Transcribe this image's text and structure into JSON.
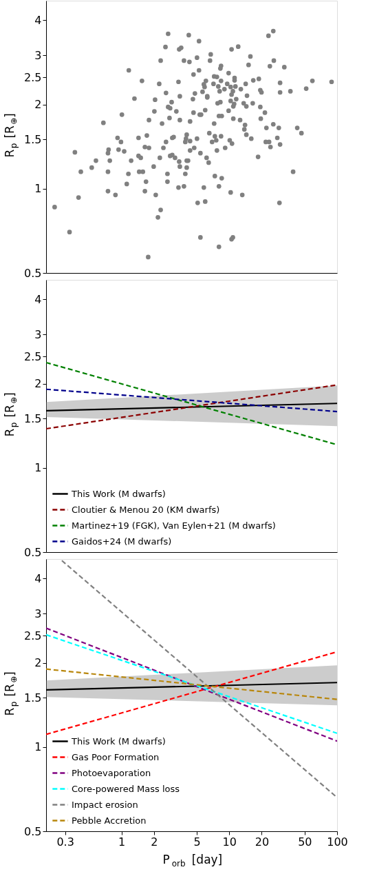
{
  "chart_data": [
    {
      "type": "scatter",
      "ylabel": "R$_{p}$ [R$_{⊕}$]",
      "log": "xy",
      "xlim": [
        0.2,
        100
      ],
      "ylim": [
        0.5,
        4.7
      ],
      "xticks": [
        0.3,
        1,
        2,
        5,
        10,
        20,
        50,
        100
      ],
      "yticks": [
        0.5,
        1,
        1.5,
        2,
        2.5,
        3,
        4
      ],
      "tick_labels": "y",
      "marker": "circle",
      "series": [
        {
          "color": "#808080",
          "x": [
            0.24,
            0.33,
            0.37,
            0.42,
            0.4,
            0.53,
            0.58,
            0.68,
            0.76,
            0.75,
            0.78,
            0.75,
            0.75,
            0.88,
            0.92,
            0.99,
            0.94,
            1.06,
            1.01,
            1.17,
            1.32,
            1.23,
            1.16,
            1.12,
            1.44,
            1.44,
            1.51,
            1.55,
            1.65,
            1.8,
            1.72,
            1.8,
            2.02,
            2.05,
            2.24,
            2.31,
            2.56,
            2.71,
            2.59,
            2.71,
            2.92,
            2.83,
            2.79,
            2.38,
            2.45,
            2.59,
            2.27,
            1.99,
            1.58,
            1.46,
            1.69,
            1.65,
            2.08,
            2.31,
            2.18,
            1.77,
            2.67,
            2.67,
            2.83,
            2.96,
            3.14,
            3.43,
            3.48,
            3.38,
            2.96,
            3.05,
            3.23,
            3.48,
            3.48,
            3.38,
            3.43,
            3.58,
            3.8,
            4.21,
            5.24,
            4.27,
            5.02,
            6.73,
            6.63,
            10.5,
            12.1,
            23.1,
            25.6,
            15.7,
            15.1,
            25.9,
            23.8,
            32.4,
            8.39,
            8.27,
            9.86,
            5.24,
            4.66,
            7.24,
            7.68,
            8.39,
            6.07,
            5.81,
            5.9,
            7.14,
            7.91,
            9.02,
            9.57,
            10.3,
            11.2,
            11.2,
            11.4,
            10.8,
            12.8,
            14.2,
            16.7,
            18.8,
            8.14,
            5.65,
            4.8,
            6.25,
            6.25,
            10.5,
            14.6,
            10.3,
            11.6,
            10.9,
            11.1,
            13.6,
            14.4,
            16.5,
            19.4,
            19.9,
            29.6,
            29.6,
            36.9,
            51.7,
            59.0,
            88.9,
            7.79,
            8.27,
            9.86,
            8.02,
            8.51,
            5.98,
            4.66,
            5.32,
            5.48,
            4.33,
            7.24,
            10.9,
            12.6,
            14.0,
            13.8,
            14.4,
            16.0,
            19.4,
            21.4,
            19.6,
            22.1,
            25.6,
            28.8,
            27.9,
            29.6,
            23.4,
            21.8,
            24.1,
            42.7,
            46.7,
            18.5,
            39.1,
            29.2,
            6.53,
            7.35,
            8.39,
            7.57,
            6.93,
            10.1,
            10.6,
            9.16,
            7.68,
            5.02,
            4.33,
            4.03,
            3.97,
            3.91,
            4.73,
            4.33,
            5.4,
            6.16,
            6.44,
            4.03,
            4.15,
            4.03,
            3.91,
            7.35,
            8.51,
            8.02,
            5.81,
            3.8,
            10.3,
            13.2,
            5.98,
            5.09,
            5.4,
            8.02,
            10.5,
            10.8,
            4.6
          ],
          "values": [
            0.86,
            0.7,
            1.35,
            1.15,
            0.93,
            1.19,
            1.26,
            1.72,
            1.38,
            1.34,
            1.26,
            1.15,
            0.98,
            0.95,
            1.52,
            1.47,
            1.38,
            1.36,
            1.84,
            2.65,
            2.1,
            1.26,
            1.13,
            1.04,
            1.52,
            1.31,
            1.29,
            2.43,
            1.41,
            1.4,
            1.55,
            1.76,
            1.89,
            2.08,
            2.37,
            2.87,
            3.21,
            3.58,
            2.2,
            1.96,
            2.04,
            1.94,
            1.79,
            1.71,
            1.4,
            1.47,
            1.29,
            1.2,
            1.15,
            1.15,
            1.06,
            0.98,
            0.95,
            0.84,
            0.79,
            0.57,
            1.13,
            1.06,
            1.31,
            1.32,
            1.29,
            1.25,
            1.2,
            1.01,
            1.52,
            1.53,
            1.89,
            1.76,
            2.14,
            2.41,
            3.15,
            3.19,
            2.87,
            3.54,
            3.37,
            2.84,
            2.94,
            3.02,
            2.87,
            3.15,
            3.22,
            3.52,
            3.66,
            2.97,
            2.77,
            2.87,
            2.74,
            2.72,
            2.75,
            2.69,
            2.59,
            2.65,
            2.56,
            2.52,
            2.51,
            2.43,
            2.43,
            2.36,
            2.31,
            2.37,
            2.32,
            2.27,
            2.37,
            2.31,
            2.49,
            2.44,
            2.32,
            2.23,
            2.27,
            2.37,
            2.44,
            2.47,
            2.23,
            2.22,
            2.19,
            2.14,
            2.12,
            2.17,
            2.15,
            2.06,
            2.09,
            1.97,
            2.01,
            2.02,
            1.97,
            2.02,
            2.25,
            2.21,
            2.39,
            2.21,
            2.23,
            2.28,
            2.43,
            2.41,
            2.02,
            2.04,
            1.9,
            1.82,
            1.82,
            1.91,
            1.87,
            1.84,
            1.84,
            1.74,
            1.71,
            1.78,
            1.76,
            1.69,
            1.63,
            1.56,
            1.51,
            1.96,
            1.87,
            1.78,
            1.65,
            1.7,
            1.65,
            1.52,
            1.44,
            1.47,
            1.47,
            1.41,
            1.65,
            1.58,
            1.3,
            1.15,
            0.89,
            1.58,
            1.54,
            1.54,
            1.49,
            1.47,
            1.49,
            1.45,
            1.4,
            1.37,
            1.51,
            1.48,
            1.56,
            1.51,
            1.47,
            1.4,
            1.37,
            1.34,
            1.29,
            1.24,
            1.26,
            1.26,
            1.19,
            1.13,
            1.11,
            1.09,
            1.02,
            1.01,
            1.02,
            0.97,
            0.95,
            0.9,
            0.89,
            0.67,
            0.62,
            0.66,
            0.67,
            2.09
          ]
        }
      ]
    },
    {
      "type": "line",
      "ylabel": "R$_{p}$ [R$_{⊕}$]",
      "log": "xy",
      "xlim": [
        0.2,
        100
      ],
      "ylim": [
        0.5,
        4.7
      ],
      "xticks": [
        0.3,
        1,
        2,
        5,
        10,
        20,
        50,
        100
      ],
      "yticks": [
        0.5,
        1,
        1.5,
        2,
        2.5,
        3,
        4
      ],
      "tick_labels": "y",
      "legend": "bottom left",
      "series": [
        {
          "name": "This Work (M dwarfs)",
          "color": "#000000",
          "line_style": "solid",
          "x": [
            0.2,
            100
          ],
          "values": [
            1.6,
            1.7
          ],
          "lower": [
            1.52,
            1.41
          ],
          "upper": [
            1.72,
            1.97
          ]
        },
        {
          "name": "Cloutier & Menou 20 (KM dwarfs)",
          "color": "#8b0000",
          "line_style": "dashed",
          "x": [
            0.2,
            100
          ],
          "values": [
            1.38,
            1.98
          ]
        },
        {
          "name": "Martinez+19 (FGK), Van Eylen+21 (M dwarfs)",
          "color": "#008000",
          "line_style": "dashed",
          "x": [
            0.2,
            100
          ],
          "values": [
            2.38,
            1.21
          ]
        },
        {
          "name": "Gaidos+24 (M dwarfs)",
          "color": "#00008b",
          "line_style": "dashed",
          "x": [
            0.2,
            100
          ],
          "values": [
            1.91,
            1.59
          ]
        }
      ]
    },
    {
      "type": "line",
      "xlabel": "P$_{orb}$ [day]",
      "ylabel": "R$_{p}$ [R$_{⊕}$]",
      "log": "xy",
      "xlim": [
        0.2,
        100
      ],
      "ylim": [
        0.5,
        4.7
      ],
      "xticks": [
        0.3,
        1,
        2,
        5,
        10,
        20,
        50,
        100
      ],
      "yticks": [
        0.5,
        1,
        1.5,
        2,
        2.5,
        3,
        4
      ],
      "legend": "bottom left",
      "series": [
        {
          "name": "This Work (M dwarfs)",
          "color": "#000000",
          "line_style": "solid",
          "x": [
            0.2,
            100
          ],
          "values": [
            1.6,
            1.7
          ],
          "lower": [
            1.51,
            1.41
          ],
          "upper": [
            1.73,
            1.96
          ]
        },
        {
          "name": "Gas Poor Formation",
          "color": "#ff0000",
          "line_style": "dashed",
          "x": [
            0.2,
            100
          ],
          "values": [
            1.11,
            2.19
          ]
        },
        {
          "name": "Photoevaporation",
          "color": "#800080",
          "line_style": "dashed",
          "x": [
            0.2,
            100
          ],
          "values": [
            2.66,
            1.05
          ]
        },
        {
          "name": "Core-powered Mass loss",
          "color": "#00ffff",
          "line_style": "dashed",
          "x": [
            0.2,
            100
          ],
          "values": [
            2.52,
            1.12
          ]
        },
        {
          "name": "Impact erosion",
          "color": "#808080",
          "line_style": "dashed",
          "x": [
            0.28,
            100
          ],
          "values": [
            4.64,
            0.66
          ]
        },
        {
          "name": "Pebble Accretion",
          "color": "#b8860b",
          "line_style": "dashed",
          "x": [
            0.2,
            100
          ],
          "values": [
            1.9,
            1.48
          ]
        }
      ]
    }
  ]
}
